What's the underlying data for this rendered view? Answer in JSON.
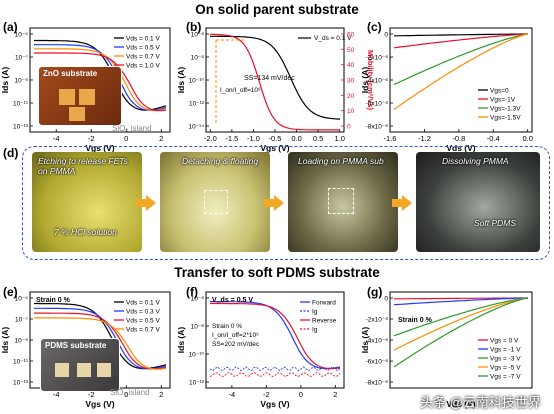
{
  "titles": {
    "top": "On solid parent substrate",
    "bottom": "Transfer to soft PDMS substrate"
  },
  "panels": {
    "a": "(a)",
    "b": "(b)",
    "c": "(c)",
    "d": "(d)",
    "e": "(e)",
    "f": "(f)",
    "g": "(g)"
  },
  "photos": {
    "a_inset_title": "ZnO substrate",
    "a_inset_island": "SiO₂ island",
    "e_inset_title": "PDMS substrate",
    "e_inset_island": "SiO₂ island",
    "d1_caption": "Etching to release FETs on PMMA",
    "d1_solution": "7 % HCl solution",
    "d2_caption": "Detaching & floating",
    "d3_caption": "Loading on PMMA sub",
    "d4_caption": "Dissolving PMMA",
    "d4_label": "Soft PDMS"
  },
  "watermark": "头条 @云南科技世界",
  "colors": {
    "black": "#000000",
    "blue": "#1f3bff",
    "red": "#e8102a",
    "orange": "#ff8c00",
    "green": "#2e9a2e"
  },
  "chart_data": [
    {
      "id": "a",
      "type": "line",
      "xlabel": "V_gs (V)",
      "ylabel": "I_ds (A)",
      "xlim": [
        -5.5,
        2.5
      ],
      "xticks": [
        -4,
        -2,
        0,
        2
      ],
      "yscale": "log",
      "yticks": [
        "10⁻⁵",
        "10⁻⁷",
        "10⁻⁹",
        "10⁻¹¹",
        "10⁻¹³"
      ],
      "series": [
        {
          "name": "V_ds = 0.1 V",
          "color": "#000000"
        },
        {
          "name": "V_ds = 0.5 V",
          "color": "#1f3bff"
        },
        {
          "name": "V_ds = 0.7 V",
          "color": "#ff8c00"
        },
        {
          "name": "V_ds = 1.0 V",
          "color": "#e8102a"
        }
      ]
    },
    {
      "id": "b",
      "type": "line",
      "xlabel": "V_gs (V)",
      "ylabel": "I_ds (A)",
      "y2label": "Mobility (cm²/Vs)",
      "xlim": [
        -2.1,
        1.1
      ],
      "xticks": [
        "-2.0",
        "-1.5",
        "-1.0",
        "-0.5",
        "0.0",
        "0.5",
        "1.0"
      ],
      "yticks": [
        "10⁻⁶",
        "10⁻⁸",
        "10⁻¹⁰",
        "10⁻¹²",
        "10⁻¹⁴"
      ],
      "y2ticks": [
        "60",
        "50",
        "40",
        "30",
        "20",
        "10",
        "0"
      ],
      "legend": "V_ds = 0.1 V",
      "annotations": [
        "SS=134 mV/dec",
        "I_on/I_off=10⁶"
      ]
    },
    {
      "id": "c",
      "type": "line",
      "xlabel": "V_ds (V)",
      "ylabel": "I_ds (A)",
      "xlim": [
        -1.6,
        0.05
      ],
      "xticks": [
        "-1.6",
        "-1.2",
        "-0.8",
        "-0.4",
        "0.0"
      ],
      "yticks": [
        "0",
        "-2x10⁻⁶",
        "-4x10⁻⁶",
        "-6x10⁻⁶",
        "-8x10⁻⁶"
      ],
      "series": [
        {
          "name": "V_gs=0",
          "color": "#000000"
        },
        {
          "name": "V_gs=-1V",
          "color": "#e8102a"
        },
        {
          "name": "V_gs=-1.3V",
          "color": "#2e9a2e"
        },
        {
          "name": "V_gs=-1.5V",
          "color": "#ff8c00"
        }
      ]
    },
    {
      "id": "e",
      "type": "line",
      "xlabel": "V_gs (V)",
      "ylabel": "I_ds (A)",
      "xlim": [
        -5.5,
        2.5
      ],
      "xticks": [
        "-4",
        "-2",
        "0",
        "2"
      ],
      "yticks": [
        "10⁻⁵",
        "10⁻⁷",
        "10⁻⁹",
        "10⁻¹¹",
        "10⁻¹³"
      ],
      "note": "Strain 0 %",
      "series": [
        {
          "name": "V_ds = 0.1 V",
          "color": "#000000"
        },
        {
          "name": "V_ds = 0.3 V",
          "color": "#1f3bff"
        },
        {
          "name": "V_ds = 0.5 V",
          "color": "#e8102a"
        },
        {
          "name": "V_ds = 0.7 V",
          "color": "#ff8c00"
        }
      ]
    },
    {
      "id": "f",
      "type": "line",
      "xlabel": "V_gs (V)",
      "ylabel": "I_ds (A)",
      "xlim": [
        -5.5,
        2.5
      ],
      "xticks": [
        "-4",
        "-2",
        "0",
        "2"
      ],
      "yticks": [
        "10⁻⁶",
        "10⁻⁸",
        "10⁻¹⁰",
        "10⁻¹²"
      ],
      "legend_title": "V_ds = 0.5 V",
      "annotations": [
        "Strain 0 %",
        "I_on/I_off=2*10⁶",
        "SS=202 mV/dec"
      ],
      "series": [
        {
          "name": "Forward",
          "color": "#1f3bff"
        },
        {
          "name": "I_g",
          "color": "#1f3bff"
        },
        {
          "name": "Reverse",
          "color": "#e8102a"
        },
        {
          "name": "I_g",
          "color": "#e8102a"
        }
      ]
    },
    {
      "id": "g",
      "type": "line",
      "xlabel": "V_ds (V)",
      "ylabel": "I_ds (A)",
      "xlim": [
        -1.6,
        0.05
      ],
      "yticks": [
        "0",
        "-2x10⁻⁶",
        "-4x10⁻⁶",
        "-6x10⁻⁶",
        "-8x10⁻⁶"
      ],
      "note": "Strain 0 %",
      "series": [
        {
          "name": "V_gs = 0 V",
          "color": "#e8102a"
        },
        {
          "name": "V_gs = -1 V",
          "color": "#1f3bff"
        },
        {
          "name": "V_gs = -3 V",
          "color": "#2e9a2e"
        },
        {
          "name": "V_gs = -5 V",
          "color": "#ff8c00"
        },
        {
          "name": "V_gs = -7 V",
          "color": "#2e9a2e"
        }
      ]
    }
  ]
}
